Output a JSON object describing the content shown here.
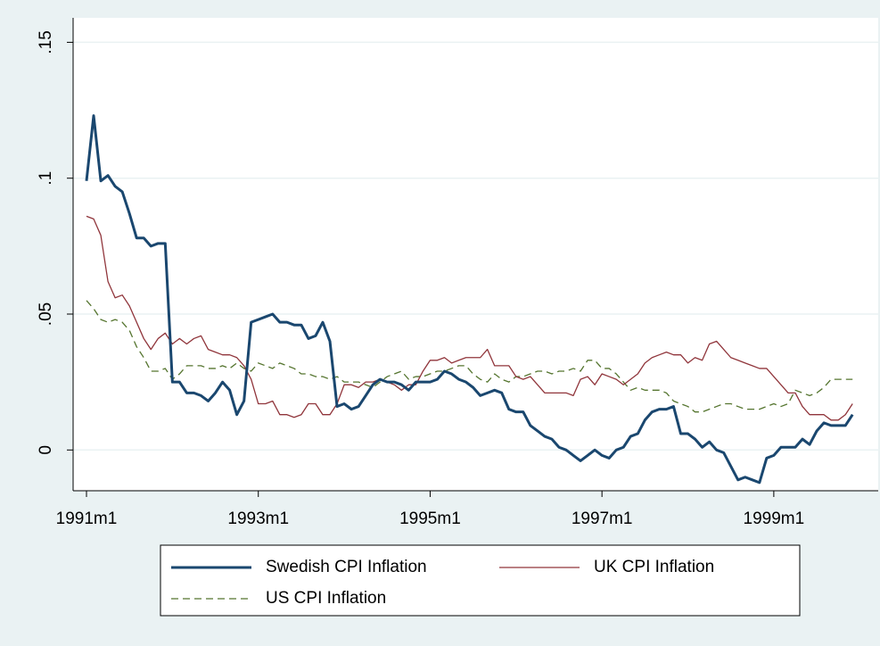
{
  "chart_data": {
    "type": "line",
    "categories": [
      "1991m1",
      null,
      null,
      null,
      null,
      null,
      null,
      null,
      null,
      null,
      null,
      null,
      null,
      null,
      null,
      null,
      null,
      null,
      null,
      null,
      null,
      null,
      null,
      null,
      "1993m1",
      null,
      null,
      null,
      null,
      null,
      null,
      null,
      null,
      null,
      null,
      null,
      null,
      null,
      null,
      null,
      null,
      null,
      null,
      null,
      null,
      null,
      null,
      null,
      "1995m1",
      null,
      null,
      null,
      null,
      null,
      null,
      null,
      null,
      null,
      null,
      null,
      null,
      null,
      null,
      null,
      null,
      null,
      null,
      null,
      null,
      null,
      null,
      null,
      "1997m1",
      null,
      null,
      null,
      null,
      null,
      null,
      null,
      null,
      null,
      null,
      null,
      null,
      null,
      null,
      null,
      null,
      null,
      null,
      null,
      null,
      null,
      null,
      null,
      "1999m1",
      null,
      null,
      null,
      null,
      null,
      null,
      null,
      null,
      null,
      null,
      null
    ],
    "series": [
      {
        "name": "Swedish CPI Inflation",
        "color": "#1a476f",
        "width": 3,
        "dash": false,
        "values": [
          0.099,
          0.123,
          0.099,
          0.101,
          0.097,
          0.095,
          0.087,
          0.078,
          0.078,
          0.075,
          0.076,
          0.076,
          0.025,
          0.025,
          0.021,
          0.021,
          0.02,
          0.018,
          0.021,
          0.025,
          0.022,
          0.013,
          0.018,
          0.047,
          0.048,
          0.049,
          0.05,
          0.047,
          0.047,
          0.046,
          0.046,
          0.041,
          0.042,
          0.047,
          0.04,
          0.016,
          0.017,
          0.015,
          0.016,
          0.02,
          0.024,
          0.026,
          0.025,
          0.025,
          0.024,
          0.022,
          0.025,
          0.025,
          0.025,
          0.026,
          0.029,
          0.028,
          0.026,
          0.025,
          0.023,
          0.02,
          0.021,
          0.022,
          0.021,
          0.015,
          0.014,
          0.014,
          0.009,
          0.007,
          0.005,
          0.004,
          0.001,
          0.0,
          -0.002,
          -0.004,
          -0.002,
          0,
          -0.002,
          -0.003,
          0,
          0.001,
          0.005,
          0.006,
          0.011,
          0.014,
          0.015,
          0.015,
          0.016,
          0.006,
          0.006,
          0.004,
          0.001,
          0.003,
          0,
          -0.001,
          -0.006,
          -0.011,
          -0.01,
          -0.011,
          -0.012,
          -0.003,
          -0.002,
          0.001,
          0.001,
          0.001,
          0.004,
          0.002,
          0.007,
          0.01,
          0.009,
          0.009,
          0.009,
          0.013
        ]
      },
      {
        "name": "UK CPI Inflation",
        "color": "#90353b",
        "width": 1.3,
        "dash": false,
        "values": [
          0.086,
          0.085,
          0.079,
          0.062,
          0.056,
          0.057,
          0.053,
          0.047,
          0.041,
          0.037,
          0.041,
          0.043,
          0.039,
          0.041,
          0.039,
          0.041,
          0.042,
          0.037,
          0.036,
          0.035,
          0.035,
          0.034,
          0.031,
          0.026,
          0.017,
          0.017,
          0.018,
          0.013,
          0.013,
          0.012,
          0.013,
          0.017,
          0.017,
          0.013,
          0.013,
          0.017,
          0.024,
          0.024,
          0.023,
          0.025,
          0.025,
          0.026,
          0.025,
          0.024,
          0.022,
          0.024,
          0.024,
          0.029,
          0.033,
          0.033,
          0.034,
          0.032,
          0.033,
          0.034,
          0.034,
          0.034,
          0.037,
          0.031,
          0.031,
          0.031,
          0.027,
          0.026,
          0.027,
          0.024,
          0.021,
          0.021,
          0.021,
          0.021,
          0.02,
          0.026,
          0.027,
          0.024,
          0.028,
          0.027,
          0.026,
          0.024,
          0.026,
          0.028,
          0.032,
          0.034,
          0.035,
          0.036,
          0.035,
          0.035,
          0.032,
          0.034,
          0.033,
          0.039,
          0.04,
          0.037,
          0.034,
          0.033,
          0.032,
          0.031,
          0.03,
          0.03,
          0.027,
          0.024,
          0.021,
          0.021,
          0.016,
          0.013,
          0.013,
          0.013,
          0.011,
          0.011,
          0.013,
          0.017
        ]
      },
      {
        "name": "US CPI Inflation",
        "color": "#55752f",
        "width": 1.3,
        "dash": true,
        "values": [
          0.055,
          0.052,
          0.048,
          0.047,
          0.048,
          0.047,
          0.044,
          0.038,
          0.034,
          0.029,
          0.029,
          0.03,
          0.026,
          0.028,
          0.031,
          0.031,
          0.031,
          0.03,
          0.03,
          0.031,
          0.03,
          0.032,
          0.03,
          0.029,
          0.032,
          0.031,
          0.03,
          0.032,
          0.031,
          0.03,
          0.028,
          0.028,
          0.027,
          0.027,
          0.026,
          0.027,
          0.025,
          0.025,
          0.025,
          0.024,
          0.023,
          0.025,
          0.027,
          0.028,
          0.029,
          0.026,
          0.027,
          0.027,
          0.028,
          0.029,
          0.029,
          0.03,
          0.031,
          0.031,
          0.028,
          0.026,
          0.025,
          0.028,
          0.026,
          0.025,
          0.027,
          0.027,
          0.028,
          0.029,
          0.029,
          0.028,
          0.029,
          0.029,
          0.03,
          0.029,
          0.033,
          0.033,
          0.03,
          0.03,
          0.028,
          0.025,
          0.022,
          0.023,
          0.022,
          0.022,
          0.022,
          0.021,
          0.018,
          0.017,
          0.016,
          0.014,
          0.014,
          0.015,
          0.016,
          0.017,
          0.017,
          0.016,
          0.015,
          0.015,
          0.015,
          0.016,
          0.017,
          0.016,
          0.017,
          0.022,
          0.021,
          0.02,
          0.021,
          0.023,
          0.026,
          0.026,
          0.026,
          0.026
        ]
      }
    ],
    "ylim": [
      -0.015,
      0.159
    ],
    "yticks": [
      0,
      {
        "value": 0.05,
        "label": ".05"
      },
      {
        "value": 0.1,
        "label": ".1"
      },
      {
        "value": 0.15,
        "label": ".15"
      }
    ],
    "grid": true,
    "legend": "bottom"
  }
}
